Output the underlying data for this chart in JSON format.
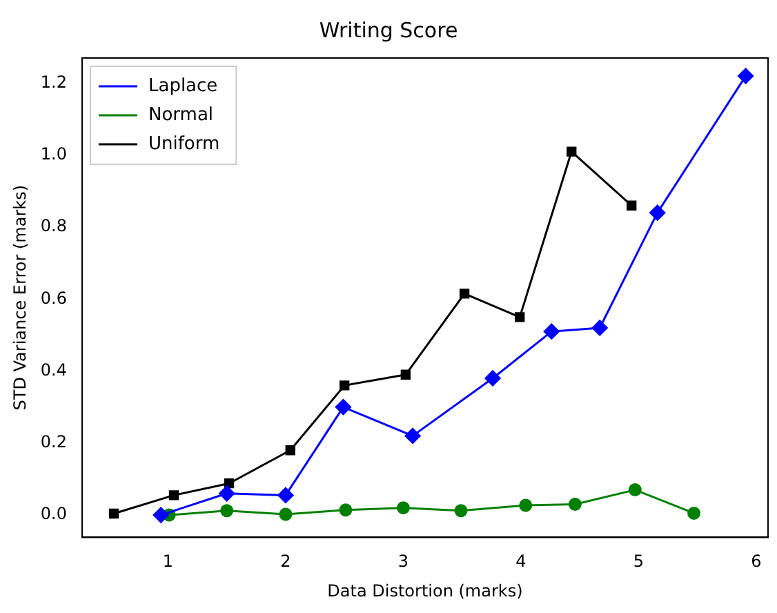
{
  "chart_data": {
    "type": "line",
    "title": "Writing Score",
    "xlabel": "Data Distortion (marks)",
    "ylabel": "STD Variance Error (marks)",
    "xlim": [
      0.27,
      6.1
    ],
    "ylim": [
      -0.062,
      1.27
    ],
    "xticks": [
      1,
      2,
      3,
      4,
      5,
      6
    ],
    "yticks": [
      {
        "value": 0,
        "label": "0.0"
      },
      {
        "value": 0.2,
        "label": "0.2"
      },
      {
        "value": 0.4,
        "label": "0.4"
      },
      {
        "value": 0.6,
        "label": "0.6"
      },
      {
        "value": 0.8,
        "label": "0.8"
      },
      {
        "value": 1.0,
        "label": "1.0"
      },
      {
        "value": 1.2,
        "label": "1.2"
      }
    ],
    "grid": false,
    "legend": "top left",
    "line_style": "solid",
    "series": [
      {
        "name": "Laplace",
        "color": "#0000ff",
        "marker": "diamond",
        "x": [
          0.94,
          1.5,
          2.0,
          2.49,
          3.08,
          3.76,
          4.26,
          4.67,
          5.16,
          5.91
        ],
        "values": [
          0.0,
          0.06,
          0.055,
          0.3,
          0.22,
          0.38,
          0.51,
          0.52,
          0.84,
          1.22
        ]
      },
      {
        "name": "Normal",
        "color": "#008000",
        "marker": "circle",
        "x": [
          1.01,
          1.5,
          2.0,
          2.51,
          3.0,
          3.49,
          4.04,
          4.46,
          4.97,
          5.47
        ],
        "values": [
          0.0,
          0.012,
          0.002,
          0.014,
          0.02,
          0.012,
          0.027,
          0.03,
          0.07,
          0.005
        ]
      },
      {
        "name": "Uniform",
        "color": "#000000",
        "marker": "square",
        "x": [
          0.54,
          1.05,
          1.52,
          2.04,
          2.5,
          3.02,
          3.52,
          3.99,
          4.43,
          4.94
        ],
        "values": [
          0.004,
          0.055,
          0.088,
          0.18,
          0.36,
          0.39,
          0.615,
          0.55,
          1.01,
          0.86
        ]
      }
    ]
  }
}
